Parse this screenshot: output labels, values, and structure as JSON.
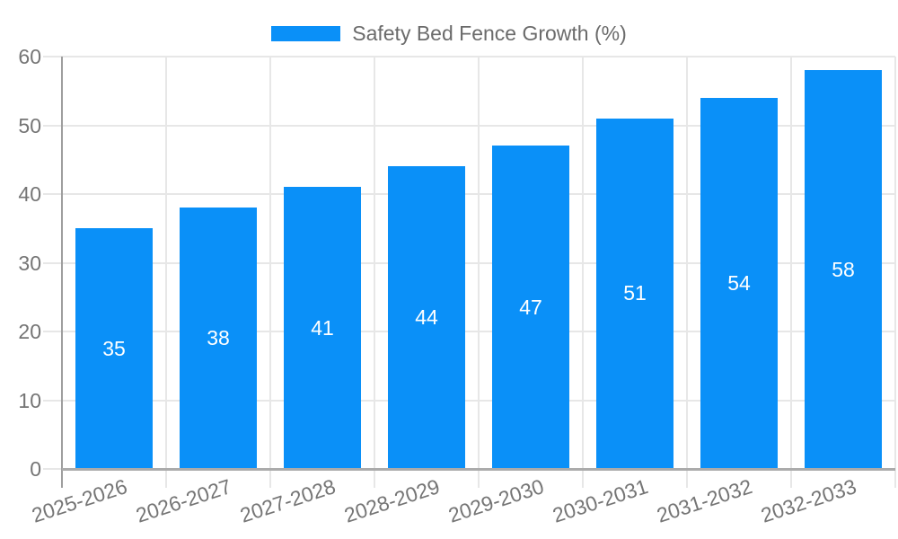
{
  "chart_data": {
    "type": "bar",
    "title": "",
    "legend": {
      "position": "top",
      "entries": [
        "Safety Bed Fence Growth (%)"
      ]
    },
    "categories": [
      "2025-2026",
      "2026-2027",
      "2027-2028",
      "2028-2029",
      "2029-2030",
      "2030-2031",
      "2031-2032",
      "2032-2033"
    ],
    "series": [
      {
        "name": "Safety Bed Fence Growth (%)",
        "color": "#0a90f8",
        "values": [
          35,
          38,
          41,
          44,
          47,
          51,
          54,
          58
        ]
      }
    ],
    "value_labels": {
      "values": [
        "35",
        "38",
        "41",
        "44",
        "47",
        "51",
        "54",
        "58"
      ],
      "position": "bar-center",
      "color": "#ffffff"
    },
    "xlabel": "",
    "ylabel": "",
    "ylim": [
      0,
      60
    ],
    "yticks": [
      "0",
      "10",
      "20",
      "30",
      "40",
      "50",
      "60"
    ],
    "ytick_step": 10,
    "grid": true,
    "x_tick_rotation_deg": -18
  },
  "colors": {
    "bar": "#0a90f8",
    "bar_label": "#ffffff",
    "axis_text": "#757575",
    "legend_text": "#6b6b6b",
    "grid_line": "#e7e7e7",
    "axis_line": "#9e9e9e",
    "baseline": "#ababab",
    "background": "#ffffff"
  }
}
